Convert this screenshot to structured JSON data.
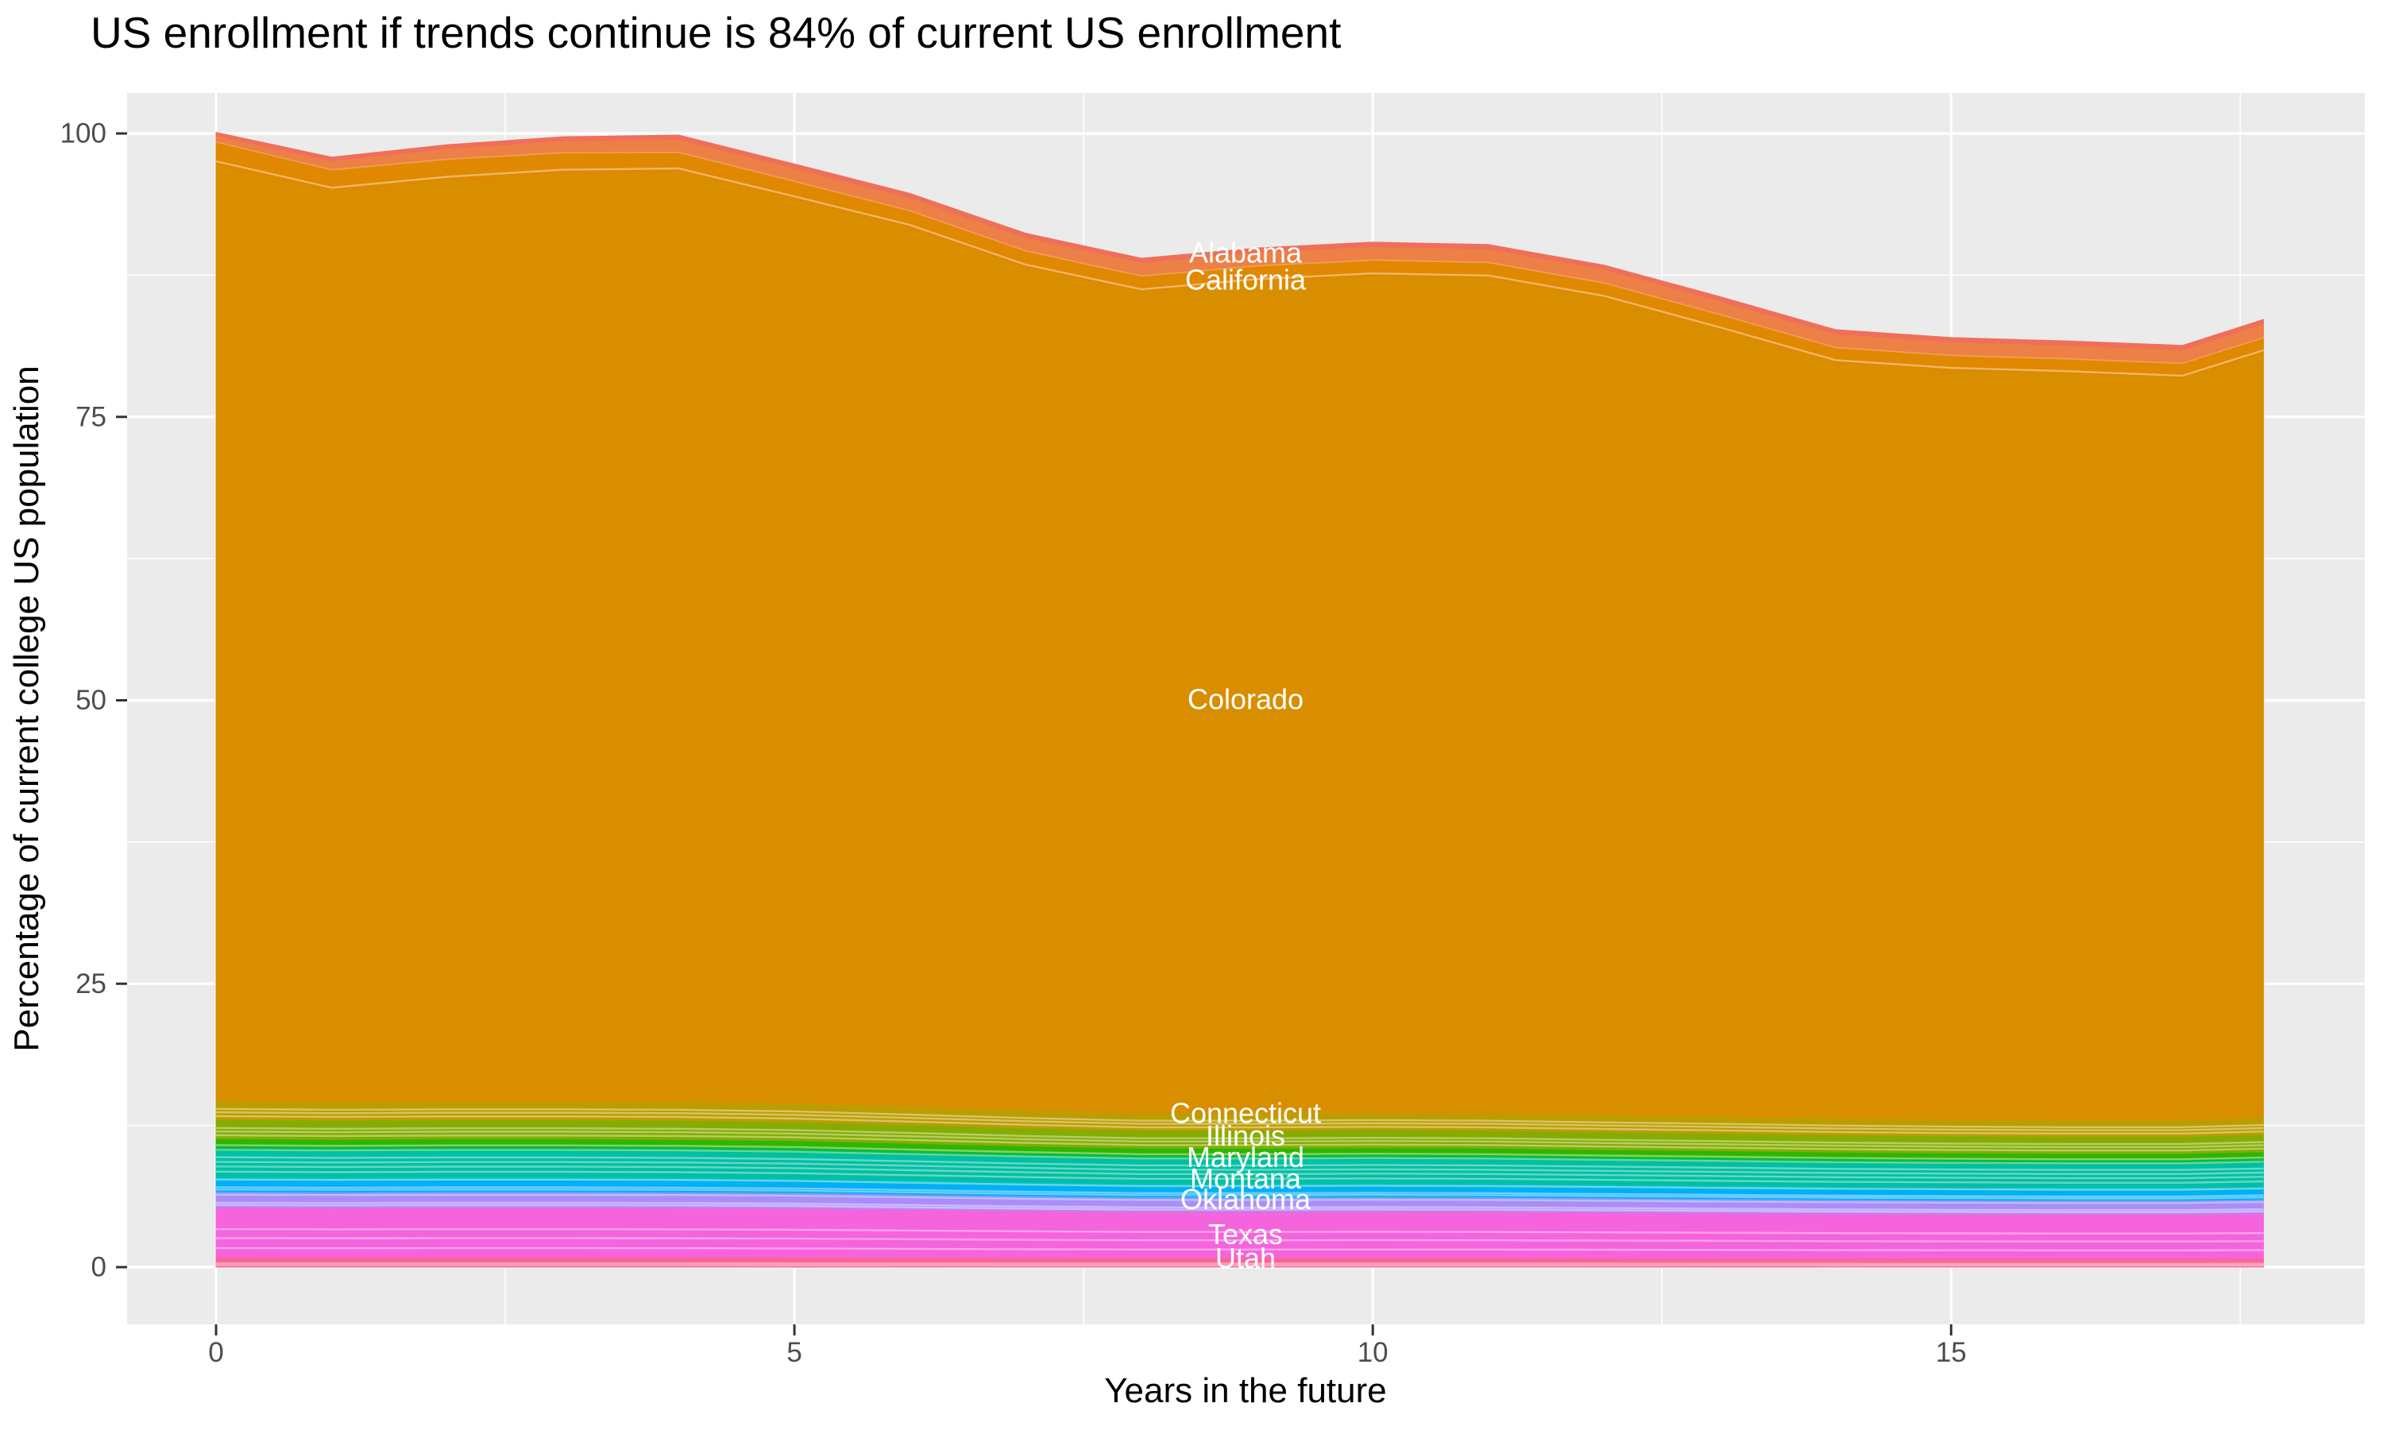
{
  "title": "US enrollment if trends continue is 84% of current US enrollment",
  "axes": {
    "x": {
      "title": "Years in the future",
      "tick_labels": [
        "0",
        "5",
        "10",
        "15"
      ],
      "tick_values": [
        0,
        5,
        10,
        15
      ],
      "minor_values": [
        2.5,
        7.5,
        12.5,
        17.5
      ],
      "range": [
        0,
        17.7
      ]
    },
    "y": {
      "title": "Percentage of current college US population",
      "tick_labels": [
        "0",
        "25",
        "50",
        "75",
        "100"
      ],
      "tick_values": [
        0,
        25,
        50,
        75,
        100
      ],
      "minor_values": [
        12.5,
        37.5,
        62.5,
        87.5
      ],
      "range": [
        0,
        100
      ]
    }
  },
  "style": {
    "panel_background": "#EBEBEB",
    "grid_color": "#FFFFFF",
    "tick_mark_color": "#333333",
    "tick_label_color": "#4D4D4D",
    "area_label_color": "#FFFFFF",
    "streak_color": "rgba(255,255,255,0.40)"
  },
  "chart_data": {
    "type": "area",
    "stacked": true,
    "grid": true,
    "legend": "none",
    "x": [
      0,
      1,
      2,
      3,
      4,
      5,
      6,
      7,
      8,
      9,
      10,
      11,
      12,
      13,
      14,
      15,
      16,
      17,
      17.7
    ],
    "series": [
      {
        "name": "utah",
        "label": "Utah",
        "color": "#FB6596",
        "streaks": 2,
        "values": [
          0.88,
          0.88,
          0.88,
          0.88,
          0.88,
          0.87,
          0.85,
          0.83,
          0.82,
          0.82,
          0.82,
          0.82,
          0.81,
          0.8,
          0.79,
          0.78,
          0.78,
          0.78,
          0.79
        ]
      },
      {
        "name": "texas",
        "label": "Texas",
        "color": "#F564DC",
        "streaks": 3,
        "values": [
          4.41,
          4.38,
          4.4,
          4.4,
          4.38,
          4.34,
          4.25,
          4.16,
          4.08,
          4.08,
          4.1,
          4.08,
          4.04,
          3.99,
          3.95,
          3.92,
          3.9,
          3.9,
          3.96
        ]
      },
      {
        "name": "oklahoma",
        "label": "Oklahoma",
        "color": "#AC8CFA",
        "streaks": 2,
        "values": [
          1.04,
          1.04,
          1.04,
          1.04,
          1.04,
          1.03,
          1.0,
          0.98,
          0.97,
          0.97,
          0.97,
          0.97,
          0.95,
          0.94,
          0.93,
          0.93,
          0.92,
          0.92,
          0.94
        ]
      },
      {
        "name": "band-violet",
        "label": "",
        "color": "#8A96FB",
        "streaks": 1,
        "values": [
          0.34,
          0.34,
          0.34,
          0.34,
          0.34,
          0.33,
          0.33,
          0.32,
          0.31,
          0.31,
          0.31,
          0.31,
          0.31,
          0.31,
          0.3,
          0.3,
          0.3,
          0.3,
          0.3
        ]
      },
      {
        "name": "montana",
        "label": "Montana",
        "color": "#00AFF8",
        "streaks": 2,
        "values": [
          1.0,
          0.99,
          1.0,
          1.0,
          0.99,
          0.98,
          0.96,
          0.94,
          0.92,
          0.92,
          0.93,
          0.92,
          0.91,
          0.9,
          0.89,
          0.89,
          0.88,
          0.88,
          0.9
        ]
      },
      {
        "name": "band-cyan",
        "label": "",
        "color": "#00BFC4",
        "streaks": 1,
        "values": [
          0.34,
          0.34,
          0.34,
          0.34,
          0.34,
          0.33,
          0.33,
          0.32,
          0.31,
          0.31,
          0.31,
          0.31,
          0.31,
          0.31,
          0.3,
          0.3,
          0.3,
          0.3,
          0.3
        ]
      },
      {
        "name": "maryland",
        "label": "Maryland",
        "color": "#00BFA2",
        "streaks": 4,
        "values": [
          2.28,
          2.26,
          2.27,
          2.27,
          2.26,
          2.24,
          2.19,
          2.15,
          2.11,
          2.11,
          2.12,
          2.11,
          2.08,
          2.06,
          2.04,
          2.02,
          2.02,
          2.02,
          2.05
        ]
      },
      {
        "name": "band-emerald",
        "label": "",
        "color": "#00BC59",
        "streaks": 1,
        "values": [
          0.35,
          0.35,
          0.35,
          0.35,
          0.35,
          0.35,
          0.34,
          0.33,
          0.33,
          0.33,
          0.33,
          0.33,
          0.32,
          0.32,
          0.32,
          0.31,
          0.31,
          0.31,
          0.32
        ]
      },
      {
        "name": "band-green",
        "label": "",
        "color": "#2DB600",
        "streaks": 1,
        "values": [
          0.69,
          0.69,
          0.69,
          0.69,
          0.69,
          0.68,
          0.67,
          0.65,
          0.64,
          0.64,
          0.64,
          0.64,
          0.63,
          0.63,
          0.62,
          0.61,
          0.61,
          0.61,
          0.62
        ]
      },
      {
        "name": "illinois",
        "label": "Illinois",
        "color": "#85AC00",
        "streaks": 3,
        "values": [
          1.69,
          1.68,
          1.68,
          1.68,
          1.68,
          1.66,
          1.63,
          1.59,
          1.56,
          1.56,
          1.57,
          1.56,
          1.55,
          1.53,
          1.51,
          1.5,
          1.5,
          1.5,
          1.52
        ]
      },
      {
        "name": "connecticut",
        "label": "Connecticut",
        "color": "#BC9D00",
        "streaks": 3,
        "values": [
          1.68,
          1.66,
          1.67,
          1.67,
          1.66,
          1.65,
          1.61,
          1.58,
          1.55,
          1.55,
          1.56,
          1.55,
          1.53,
          1.52,
          1.5,
          1.49,
          1.48,
          1.48,
          1.5
        ]
      },
      {
        "name": "colorado",
        "label": "Colorado",
        "color": "#D98E00",
        "streaks": 0,
        "values": [
          82.48,
          80.26,
          81.19,
          81.82,
          82.0,
          79.7,
          77.5,
          74.32,
          72.4,
          73.3,
          73.75,
          73.62,
          71.99,
          69.35,
          66.62,
          66.03,
          65.8,
          65.4,
          67.44
        ]
      },
      {
        "name": "california",
        "label": "California",
        "color": "#E08800",
        "streaks": 1,
        "values": [
          2.05,
          1.9,
          1.85,
          1.8,
          1.7,
          1.6,
          1.5,
          1.45,
          1.4,
          1.4,
          1.4,
          1.38,
          1.36,
          1.35,
          1.33,
          1.32,
          1.3,
          1.3,
          1.32
        ]
      },
      {
        "name": "band-peach",
        "label": "",
        "color": "#F0A058",
        "streaks": 0,
        "values": [
          0.12,
          0.12,
          0.12,
          0.12,
          0.12,
          0.12,
          0.12,
          0.12,
          0.12,
          0.12,
          0.12,
          0.12,
          0.12,
          0.12,
          0.12,
          0.12,
          0.12,
          0.12,
          0.12
        ]
      },
      {
        "name": "band-salmon",
        "label": "",
        "color": "#EC8046",
        "streaks": 0,
        "values": [
          0.45,
          0.7,
          0.85,
          0.95,
          1.05,
          1.05,
          1.05,
          1.08,
          1.1,
          1.1,
          1.1,
          1.1,
          1.1,
          1.1,
          1.1,
          1.1,
          1.1,
          1.1,
          1.12
        ]
      },
      {
        "name": "alabama",
        "label": "Alabama",
        "color": "#EF6F5A",
        "streaks": 0,
        "values": [
          0.3,
          0.32,
          0.34,
          0.36,
          0.38,
          0.38,
          0.38,
          0.38,
          0.38,
          0.38,
          0.38,
          0.38,
          0.38,
          0.38,
          0.38,
          0.38,
          0.38,
          0.38,
          0.4
        ]
      }
    ],
    "labels": [
      {
        "text": "Alabama",
        "x": 8.9,
        "v": 89.5
      },
      {
        "text": "California",
        "x": 8.9,
        "v": 87.1
      },
      {
        "text": "Colorado",
        "x": 8.9,
        "v": 50.1
      },
      {
        "text": "Connecticut",
        "x": 8.9,
        "v": 13.6
      },
      {
        "text": "Illinois",
        "x": 8.9,
        "v": 11.6
      },
      {
        "text": "Maryland",
        "x": 8.9,
        "v": 9.7
      },
      {
        "text": "Montana",
        "x": 8.9,
        "v": 7.8
      },
      {
        "text": "Oklahoma",
        "x": 8.9,
        "v": 6.0
      },
      {
        "text": "Texas",
        "x": 8.9,
        "v": 2.9
      },
      {
        "text": "Utah",
        "x": 8.9,
        "v": 0.8
      }
    ]
  }
}
